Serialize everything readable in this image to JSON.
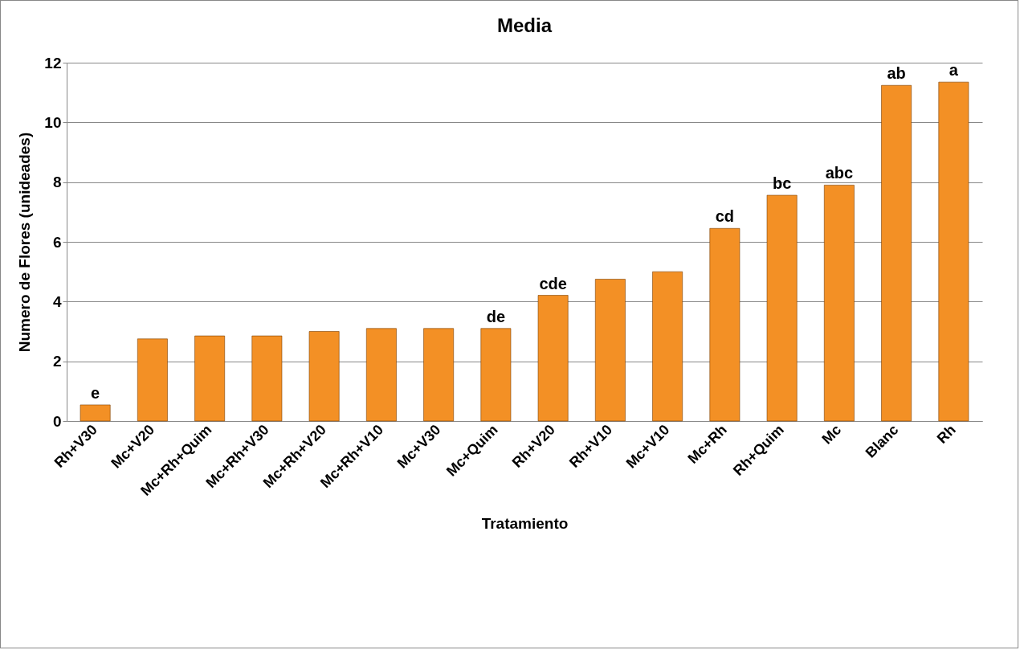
{
  "chart_data": {
    "type": "bar",
    "title": "Media",
    "xlabel": "Tratamiento",
    "ylabel": "Numero de Flores (unideades)",
    "categories": [
      "Rh+V30",
      "Mc+V20",
      "Mc+Rh+Quim",
      "Mc+Rh+V30",
      "Mc+Rh+V20",
      "Mc+Rh+V10",
      "Mc+V30",
      "Mc+Quim",
      "Rh+V20",
      "Rh+V10",
      "Mc+V10",
      "Mc+Rh",
      "Rh+Quim",
      "Mc",
      "Blanc",
      "Rh"
    ],
    "values": [
      0.54,
      2.75,
      2.85,
      2.85,
      3.0,
      3.1,
      3.1,
      3.1,
      4.21,
      4.75,
      5.0,
      6.45,
      7.56,
      7.9,
      11.24,
      11.35
    ],
    "color": "#f39025",
    "ylim": [
      0,
      12
    ],
    "yticks": [
      0,
      2,
      4,
      6,
      8,
      10,
      12
    ],
    "grid": "y",
    "annotations": [
      {
        "text": "e",
        "x": "Rh+V30",
        "y": 0.54
      },
      {
        "text": "de",
        "x": "Mc+Quim",
        "y": 3.1
      },
      {
        "text": "cde",
        "x": "Rh+V20",
        "y": 4.21
      },
      {
        "text": "cd",
        "x": "Mc+Rh",
        "y": 6.45
      },
      {
        "text": "bc",
        "x": "Rh+Quim",
        "y": 7.56
      },
      {
        "text": "abc",
        "x": "Mc",
        "y": 7.9
      },
      {
        "text": "ab",
        "x": "Blanc",
        "y": 11.24
      },
      {
        "text": "a",
        "x": "Rh",
        "y": 11.35
      }
    ]
  }
}
